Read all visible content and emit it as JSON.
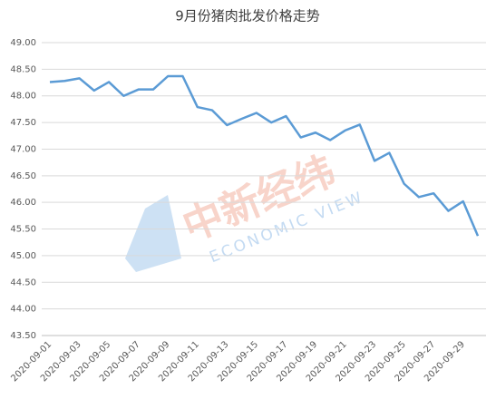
{
  "chart_data": {
    "type": "line",
    "title": "9月份猪肉批发价格走势",
    "categories": [
      "2020-09-01",
      null,
      "2020-09-03",
      null,
      "2020-09-05",
      null,
      "2020-09-07",
      null,
      "2020-09-09",
      null,
      "2020-09-11",
      null,
      "2020-09-13",
      null,
      "2020-09-15",
      null,
      "2020-09-17",
      null,
      "2020-09-19",
      null,
      "2020-09-21",
      null,
      "2020-09-23",
      null,
      "2020-09-25",
      null,
      "2020-09-27",
      null,
      "2020-09-29",
      null
    ],
    "series": [
      {
        "color": "#5b9bd5",
        "values": [
          48.26,
          48.28,
          48.33,
          48.1,
          48.26,
          48.0,
          48.12,
          48.12,
          48.37,
          48.37,
          47.79,
          47.73,
          47.45,
          47.57,
          47.68,
          47.5,
          47.62,
          47.22,
          47.31,
          47.17,
          47.35,
          47.46,
          46.78,
          46.93,
          46.35,
          46.1,
          46.17,
          45.84,
          46.02,
          45.37
        ]
      }
    ],
    "ylim": [
      43.5,
      49
    ],
    "yticks": [
      {
        "value": 43.5,
        "label": "43.50"
      },
      {
        "value": 44,
        "label": "44.00"
      },
      {
        "value": 44.5,
        "label": "44.50"
      },
      {
        "value": 45,
        "label": "45.00"
      },
      {
        "value": 45.5,
        "label": "45.50"
      },
      {
        "value": 46,
        "label": "46.00"
      },
      {
        "value": 46.5,
        "label": "46.50"
      },
      {
        "value": 47,
        "label": "47.00"
      },
      {
        "value": 47.5,
        "label": "47.50"
      },
      {
        "value": 48,
        "label": "48.00"
      },
      {
        "value": 48.5,
        "label": "48.50"
      },
      {
        "value": 49,
        "label": "49.00"
      }
    ],
    "grid": true,
    "watermark": [
      "中新经纬",
      "ECONOMIC VIEW"
    ]
  }
}
